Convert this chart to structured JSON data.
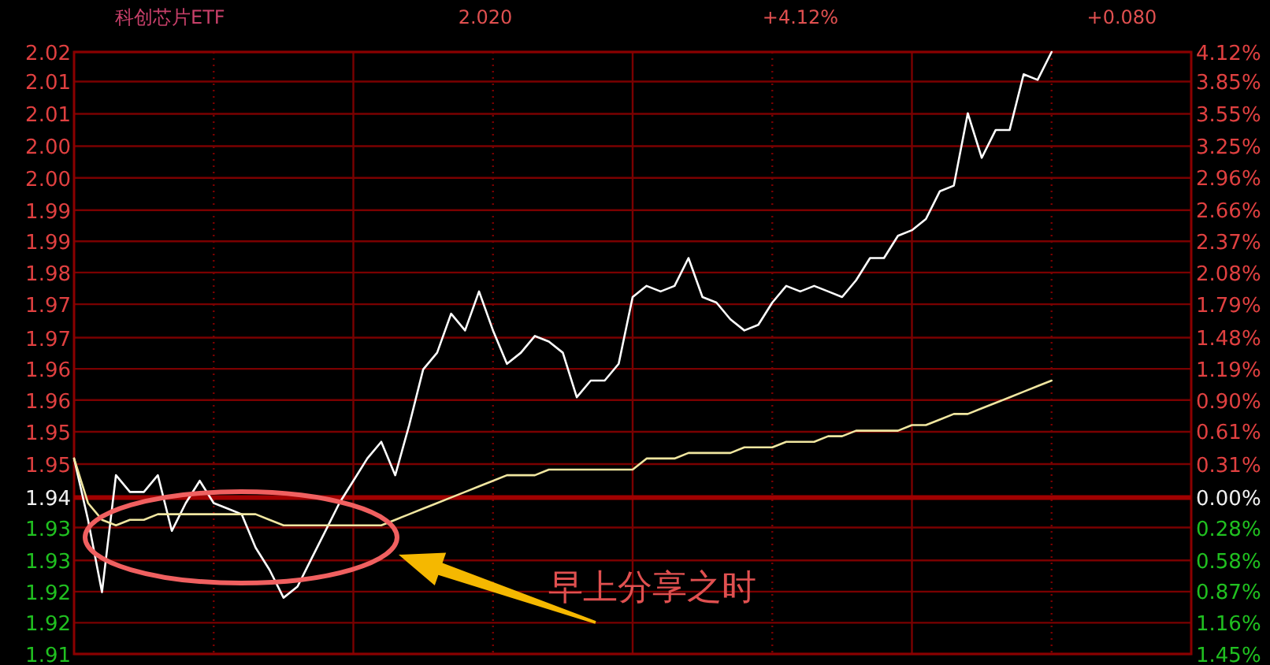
{
  "chart_data": {
    "type": "line",
    "title": "科创芯片ETF",
    "annotations": [
      "2.020",
      "+4.12%",
      "+0.080",
      "早上分享之时"
    ],
    "categories": [
      null,
      null,
      null,
      null,
      null,
      null,
      null,
      null,
      null,
      null,
      null,
      null,
      null,
      null,
      null,
      null,
      null,
      null,
      null,
      null,
      null,
      null,
      null,
      null,
      null,
      null,
      null,
      null,
      null,
      null,
      null,
      null,
      null,
      null,
      null,
      null,
      null,
      null,
      null,
      null,
      null,
      null,
      null,
      null,
      null,
      null,
      null,
      null,
      null,
      null,
      null,
      null,
      null,
      null,
      null,
      null,
      null,
      null,
      null,
      null,
      null,
      null,
      null,
      null,
      null,
      null,
      null,
      null,
      null,
      null,
      null,
      null,
      null,
      null,
      null,
      null,
      null,
      null,
      null,
      null,
      null
    ],
    "series": [
      {
        "color": "#ffffff",
        "values": [
          1.947,
          1.936,
          1.923,
          1.944,
          1.941,
          1.941,
          1.944,
          1.934,
          1.939,
          1.943,
          1.939,
          1.938,
          1.937,
          1.931,
          1.927,
          1.922,
          1.924,
          1.929,
          1.934,
          1.939,
          1.943,
          1.947,
          1.95,
          1.944,
          1.953,
          1.963,
          1.966,
          1.973,
          1.97,
          1.977,
          1.97,
          1.964,
          1.966,
          1.969,
          1.968,
          1.966,
          1.958,
          1.961,
          1.961,
          1.964,
          1.976,
          1.978,
          1.977,
          1.978,
          1.983,
          1.976,
          1.975,
          1.972,
          1.97,
          1.971,
          1.975,
          1.978,
          1.977,
          1.978,
          1.977,
          1.976,
          1.979,
          1.983,
          1.983,
          1.987,
          1.988,
          1.99,
          1.995,
          1.996,
          2.009,
          2.001,
          2.006,
          2.006,
          2.016,
          2.015,
          2.02,
          null,
          null,
          null,
          null,
          null,
          null,
          null,
          null,
          null,
          null
        ]
      },
      {
        "color": "#f0e6a0",
        "values": [
          1.947,
          1.939,
          1.936,
          1.935,
          1.936,
          1.936,
          1.937,
          1.937,
          1.937,
          1.937,
          1.937,
          1.937,
          1.937,
          1.937,
          1.936,
          1.935,
          1.935,
          1.935,
          1.935,
          1.935,
          1.935,
          1.935,
          1.935,
          1.936,
          1.937,
          1.938,
          1.939,
          1.94,
          1.941,
          1.942,
          1.943,
          1.944,
          1.944,
          1.944,
          1.945,
          1.945,
          1.945,
          1.945,
          1.945,
          1.945,
          1.945,
          1.947,
          1.947,
          1.947,
          1.948,
          1.948,
          1.948,
          1.948,
          1.949,
          1.949,
          1.949,
          1.95,
          1.95,
          1.95,
          1.951,
          1.951,
          1.952,
          1.952,
          1.952,
          1.952,
          1.953,
          1.953,
          1.954,
          1.955,
          1.955,
          1.956,
          1.957,
          1.958,
          1.959,
          1.96,
          1.961,
          null,
          null,
          null,
          null,
          null,
          null,
          null,
          null,
          null,
          null
        ]
      }
    ],
    "ylim": [
      1.9119,
      2.02
    ],
    "yticks": [
      {
        "value": 2.02,
        "label": "2.02"
      },
      {
        "value": 2.0147,
        "label": "2.01"
      },
      {
        "value": 2.0089,
        "label": "2.01"
      },
      {
        "value": 2.0031,
        "label": "2.00"
      },
      {
        "value": 1.9974,
        "label": "2.00"
      },
      {
        "value": 1.9916,
        "label": "1.99"
      },
      {
        "value": 1.986,
        "label": "1.99"
      },
      {
        "value": 1.9804,
        "label": "1.98"
      },
      {
        "value": 1.9747,
        "label": "1.97"
      },
      {
        "value": 1.9687,
        "label": "1.97"
      },
      {
        "value": 1.9631,
        "label": "1.96"
      },
      {
        "value": 1.9575,
        "label": "1.96"
      },
      {
        "value": 1.9518,
        "label": "1.95"
      },
      {
        "value": 1.946,
        "label": "1.95"
      },
      {
        "value": 1.94,
        "label": "1.94"
      },
      {
        "value": 1.9346,
        "label": "1.93"
      },
      {
        "value": 1.9287,
        "label": "1.93"
      },
      {
        "value": 1.9231,
        "label": "1.92"
      },
      {
        "value": 1.9175,
        "label": "1.92"
      },
      {
        "value": 1.9119,
        "label": "1.91"
      }
    ],
    "y2lim": [
      -1.45,
      4.12
    ],
    "y2ticks": [
      {
        "value": 4.12,
        "label": "4.12%"
      },
      {
        "value": 3.85,
        "label": "3.85%"
      },
      {
        "value": 3.55,
        "label": "3.55%"
      },
      {
        "value": 3.25,
        "label": "3.25%"
      },
      {
        "value": 2.96,
        "label": "2.96%"
      },
      {
        "value": 2.66,
        "label": "2.66%"
      },
      {
        "value": 2.37,
        "label": "2.37%"
      },
      {
        "value": 2.08,
        "label": "2.08%"
      },
      {
        "value": 1.79,
        "label": "1.79%"
      },
      {
        "value": 1.48,
        "label": "1.48%"
      },
      {
        "value": 1.19,
        "label": "1.19%"
      },
      {
        "value": 0.9,
        "label": "0.90%"
      },
      {
        "value": 0.61,
        "label": "0.61%"
      },
      {
        "value": 0.31,
        "label": "0.31%"
      },
      {
        "value": 0,
        "label": "0.00%"
      },
      {
        "value": -0.28,
        "label": "0.28%"
      },
      {
        "value": -0.58,
        "label": "0.58%"
      },
      {
        "value": -0.87,
        "label": "0.87%"
      },
      {
        "value": -1.16,
        "label": "1.16%"
      },
      {
        "value": -1.45,
        "label": "1.45%"
      }
    ],
    "ref_lines": [
      {
        "axis": "y",
        "value": 1.94,
        "color": "#a00000"
      }
    ],
    "grid": true,
    "marker": "none",
    "line_style": "solid"
  }
}
